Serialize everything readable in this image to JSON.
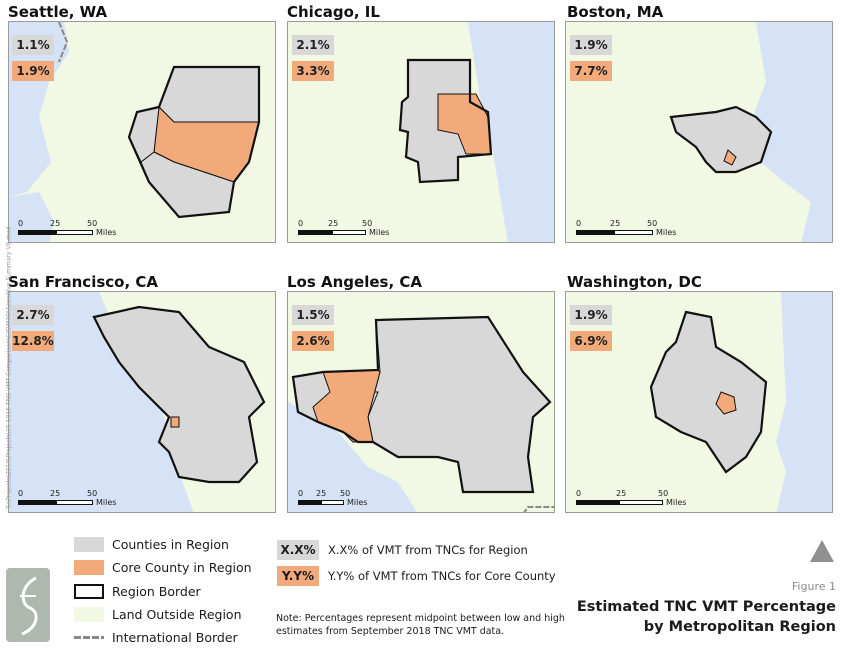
{
  "panels": [
    {
      "title": "Seattle, WA",
      "region_pct": "1.1%",
      "core_pct": "1.9%"
    },
    {
      "title": "Chicago, IL",
      "region_pct": "2.1%",
      "core_pct": "3.3%"
    },
    {
      "title": "Boston, MA",
      "region_pct": "1.9%",
      "core_pct": "7.7%"
    },
    {
      "title": "San Francisco, CA",
      "region_pct": "2.7%",
      "core_pct": "12.8%"
    },
    {
      "title": "Los Angeles, CA",
      "region_pct": "1.5%",
      "core_pct": "2.6%"
    },
    {
      "title": "Washington, DC",
      "region_pct": "1.9%",
      "core_pct": "6.9%"
    }
  ],
  "scale": {
    "t0": "0",
    "t25": "25",
    "t50": "50",
    "unit": "Miles"
  },
  "legend": {
    "counties": "Counties in Region",
    "core": "Core County in Region",
    "border": "Region Border",
    "land": "Land Outside Region",
    "intl": "International Border"
  },
  "key": {
    "region_box": "X.X%",
    "region_text": "X.X% of VMT from TNCs for Region",
    "core_box": "Y.Y%",
    "core_text": "Y.Y% of VMT from TNCs for Core County"
  },
  "note": "Note: Percentages represent midpoint between low and high estimates from September 2018 TNC VMT data.",
  "figure_label": "Figure 1",
  "figure_title_line1": "Estimated TNC VMT Percentage",
  "figure_title_line2": "by Metropolitan Region",
  "side_path": "S:\\Projects\\2019\\Projects\\19-1016 TNC VMT Comparison\\GIS\\MXD\\Sensitive Summary V8.mxd",
  "colors": {
    "land": "#f1f8e3",
    "water": "#d6e2f5",
    "county": "#d8d8d8",
    "core": "#f2aa7b",
    "border": "#111111"
  }
}
